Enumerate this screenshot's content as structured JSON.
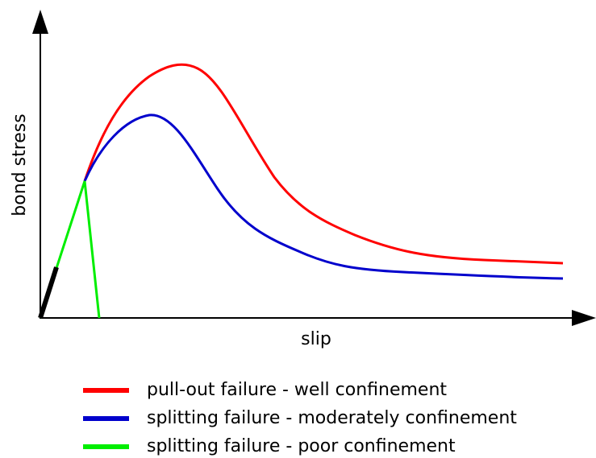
{
  "axes": {
    "y_label": "bond stress",
    "x_label": "slip"
  },
  "legend": [
    {
      "label": "pull-out failure - well confinement",
      "color": "#ff0000"
    },
    {
      "label": "splitting failure - moderately confinement",
      "color": "#0000cc"
    },
    {
      "label": "splitting failure - poor confinement",
      "color": "#00ee00"
    }
  ]
}
